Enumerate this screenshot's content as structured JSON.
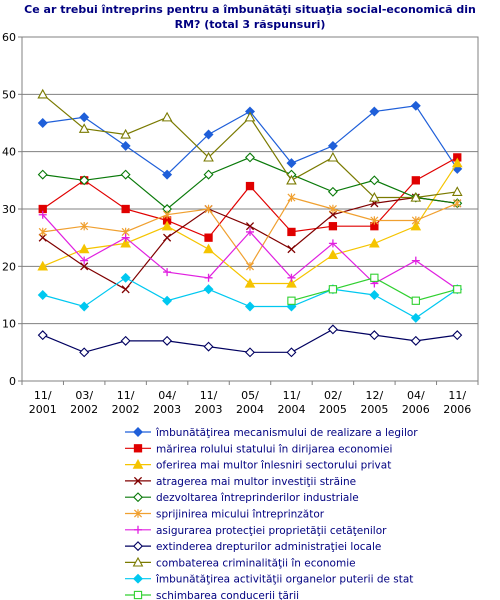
{
  "chart_data": {
    "type": "line",
    "title": "Ce ar trebui întreprins pentru a îmbunătăţi situaţia social-economică din RM? (total 3 răspunsuri)",
    "title_lines": [
      "Ce ar trebui întreprins pentru a îmbunătăţi situaţia social-economică din",
      "RM? (total 3 răspunsuri)"
    ],
    "x": [
      "11/ 2001",
      "03/ 2002",
      "11/ 2002",
      "04/ 2003",
      "11/ 2003",
      "05/ 2004",
      "11/ 2004",
      "02/ 2005",
      "12/ 2005",
      "04/ 2006",
      "11/ 2006"
    ],
    "xlabel": "",
    "ylabel": "",
    "ylim": [
      0,
      60
    ],
    "yticks": [
      0,
      10,
      20,
      30,
      40,
      50,
      60
    ],
    "grid": true,
    "legend_position": "bottom",
    "series": [
      {
        "name": "îmbunătăţirea mecanismului de realizare a legilor",
        "color": "#1f5fd9",
        "marker": "diamond-filled",
        "values": [
          45,
          46,
          41,
          36,
          43,
          47,
          38,
          41,
          47,
          48,
          37
        ]
      },
      {
        "name": "mărirea rolului statului în dirijarea economiei",
        "color": "#e00000",
        "marker": "square-filled",
        "values": [
          30,
          35,
          30,
          28,
          25,
          34,
          26,
          27,
          27,
          35,
          39
        ]
      },
      {
        "name": "oferirea mai multor înlesniri sectorului privat",
        "color": "#f5c400",
        "marker": "triangle-filled",
        "values": [
          20,
          23,
          24,
          27,
          23,
          17,
          17,
          22,
          24,
          27,
          38
        ]
      },
      {
        "name": "atragerea mai multor investiţii străine",
        "color": "#800000",
        "marker": "x",
        "values": [
          25,
          20,
          16,
          25,
          30,
          27,
          23,
          29,
          31,
          32,
          31
        ]
      },
      {
        "name": "dezvoltarea întreprinderilor industriale",
        "color": "#0a7a0a",
        "marker": "diamond-open",
        "values": [
          36,
          35,
          36,
          30,
          36,
          39,
          36,
          33,
          35,
          32,
          31
        ]
      },
      {
        "name": "sprijinirea micului întreprinzător",
        "color": "#f0a030",
        "marker": "star",
        "values": [
          26,
          27,
          26,
          29,
          30,
          20,
          32,
          30,
          28,
          28,
          31
        ]
      },
      {
        "name": "asigurarea protecţiei proprietăţii cetăţenilor",
        "color": "#e020e0",
        "marker": "plus",
        "values": [
          29,
          21,
          25,
          19,
          18,
          26,
          18,
          24,
          17,
          21,
          16
        ]
      },
      {
        "name": "extinderea drepturilor administraţiei locale",
        "color": "#000060",
        "marker": "diamond-open",
        "values": [
          8,
          5,
          7,
          7,
          6,
          5,
          5,
          9,
          8,
          7,
          8
        ]
      },
      {
        "name": "combaterea criminalităţii în economie",
        "color": "#7a7a00",
        "marker": "triangle-open",
        "values": [
          50,
          44,
          43,
          46,
          39,
          46,
          35,
          39,
          32,
          32,
          33
        ]
      },
      {
        "name": "îmbunătăţirea activităţii organelor puterii de stat",
        "color": "#00c8f0",
        "marker": "diamond-filled",
        "values": [
          15,
          13,
          18,
          14,
          16,
          13,
          13,
          16,
          15,
          11,
          16
        ]
      },
      {
        "name": "schimbarea conducerii ţării",
        "color": "#30d030",
        "marker": "square-open",
        "values": [
          null,
          null,
          null,
          null,
          null,
          null,
          14,
          16,
          18,
          14,
          16
        ]
      }
    ]
  }
}
